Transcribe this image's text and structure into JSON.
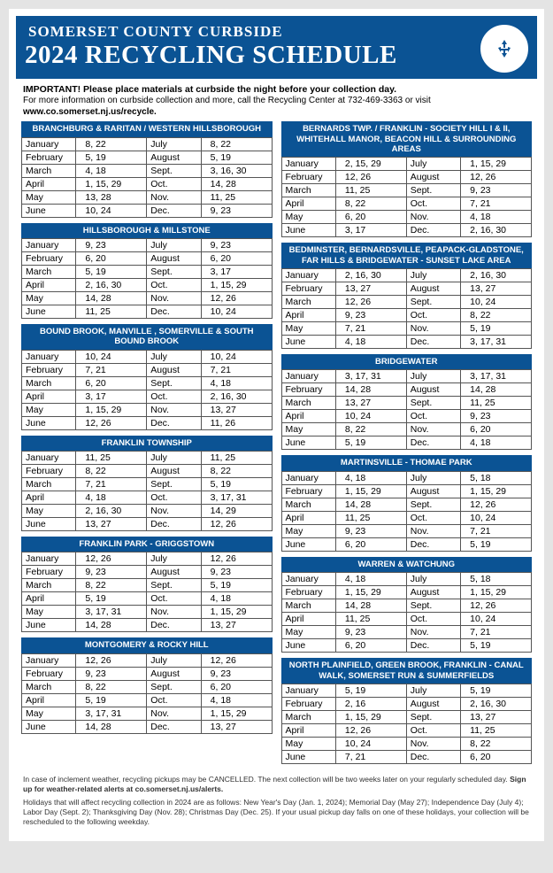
{
  "colors": {
    "brand": "#0b5394",
    "background": "#ffffff",
    "page_bg": "#e4e4e4",
    "border": "#555555",
    "text": "#000000"
  },
  "header": {
    "line1": "SOMERSET COUNTY CURBSIDE",
    "line2": "2024 RECYCLING SCHEDULE",
    "seal_text": "SOMERSET COUNTY NJ RECYCLING"
  },
  "intro": {
    "important": "IMPORTANT! Please place materials at curbside the night before your collection day.",
    "more_info": "For more information on curbside collection and more, call the Recycling Center at 732-469-3363 or visit",
    "website": "www.co.somerset.nj.us/recycle."
  },
  "months": [
    "January",
    "February",
    "March",
    "April",
    "May",
    "June",
    "July",
    "August",
    "Sept.",
    "Oct.",
    "Nov.",
    "Dec."
  ],
  "left_blocks": [
    {
      "title": "BRANCHBURG & RARITAN / WESTERN HILLSBOROUGH",
      "rows": [
        [
          "8, 22",
          "8, 22"
        ],
        [
          "5, 19",
          "5, 19"
        ],
        [
          "4, 18",
          "3, 16, 30"
        ],
        [
          "1, 15, 29",
          "14, 28"
        ],
        [
          "13, 28",
          "11, 25"
        ],
        [
          "10, 24",
          "9, 23"
        ]
      ]
    },
    {
      "title": "HILLSBOROUGH & MILLSTONE",
      "rows": [
        [
          "9, 23",
          "9, 23"
        ],
        [
          "6, 20",
          "6, 20"
        ],
        [
          "5, 19",
          "3, 17"
        ],
        [
          "2, 16, 30",
          "1, 15, 29"
        ],
        [
          "14, 28",
          "12, 26"
        ],
        [
          "11, 25",
          "10, 24"
        ]
      ]
    },
    {
      "title": "BOUND BROOK, MANVILLE , SOMERVILLE & SOUTH BOUND BROOK",
      "tall": true,
      "rows": [
        [
          "10, 24",
          "10, 24"
        ],
        [
          "7, 21",
          "7, 21"
        ],
        [
          "6, 20",
          "4, 18"
        ],
        [
          "3, 17",
          "2, 16, 30"
        ],
        [
          "1, 15, 29",
          "13, 27"
        ],
        [
          "12, 26",
          "11, 26"
        ]
      ]
    },
    {
      "title": "FRANKLIN TOWNSHIP",
      "rows": [
        [
          "11, 25",
          "11, 25"
        ],
        [
          "8, 22",
          "8, 22"
        ],
        [
          "7, 21",
          "5, 19"
        ],
        [
          "4, 18",
          "3, 17, 31"
        ],
        [
          "2, 16, 30",
          "14, 29"
        ],
        [
          "13, 27",
          "12, 26"
        ]
      ]
    },
    {
      "title": "FRANKLIN PARK - GRIGGSTOWN",
      "rows": [
        [
          "12, 26",
          "12, 26"
        ],
        [
          "9, 23",
          "9, 23"
        ],
        [
          "8, 22",
          "5, 19"
        ],
        [
          "5, 19",
          "4, 18"
        ],
        [
          "3, 17, 31",
          "1, 15, 29"
        ],
        [
          "14, 28",
          "13, 27"
        ]
      ]
    },
    {
      "title": "MONTGOMERY & ROCKY HILL",
      "rows": [
        [
          "12, 26",
          "12, 26"
        ],
        [
          "9, 23",
          "9, 23"
        ],
        [
          "8, 22",
          "6, 20"
        ],
        [
          "5, 19",
          "4, 18"
        ],
        [
          "3, 17, 31",
          "1, 15, 29"
        ],
        [
          "14, 28",
          "13, 27"
        ]
      ]
    }
  ],
  "right_blocks": [
    {
      "title": "BERNARDS TWP. / FRANKLIN - SOCIETY HILL I & II, WHITEHALL MANOR, BEACON HILL & SURROUNDING AREAS",
      "tall": true,
      "rows": [
        [
          "2, 15, 29",
          "1, 15, 29"
        ],
        [
          "12, 26",
          "12, 26"
        ],
        [
          "11, 25",
          "9, 23"
        ],
        [
          "8, 22",
          "7, 21"
        ],
        [
          "6, 20",
          "4, 18"
        ],
        [
          "3, 17",
          "2, 16, 30"
        ]
      ]
    },
    {
      "title": "BEDMINSTER, BERNARDSVILLE, PEAPACK-GLADSTONE, FAR HILLS & BRIDGEWATER - SUNSET LAKE AREA",
      "tall": true,
      "rows": [
        [
          "2, 16, 30",
          "2, 16, 30"
        ],
        [
          "13, 27",
          "13, 27"
        ],
        [
          "12, 26",
          "10, 24"
        ],
        [
          "9, 23",
          "8, 22"
        ],
        [
          "7, 21",
          "5, 19"
        ],
        [
          "4, 18",
          "3, 17, 31"
        ]
      ]
    },
    {
      "title": "BRIDGEWATER",
      "rows": [
        [
          "3, 17, 31",
          "3, 17, 31"
        ],
        [
          "14, 28",
          "14, 28"
        ],
        [
          "13, 27",
          "11, 25"
        ],
        [
          "10, 24",
          "9, 23"
        ],
        [
          "8, 22",
          "6, 20"
        ],
        [
          "5, 19",
          "4, 18"
        ]
      ]
    },
    {
      "title": "MARTINSVILLE - THOMAE PARK",
      "rows": [
        [
          "4, 18",
          "5, 18"
        ],
        [
          "1, 15, 29",
          "1, 15, 29"
        ],
        [
          "14, 28",
          "12, 26"
        ],
        [
          "11, 25",
          "10, 24"
        ],
        [
          "9, 23",
          "7, 21"
        ],
        [
          "6, 20",
          "5, 19"
        ]
      ]
    },
    {
      "title": "WARREN & WATCHUNG",
      "rows": [
        [
          "4, 18",
          "5, 18"
        ],
        [
          "1, 15, 29",
          "1, 15, 29"
        ],
        [
          "14, 28",
          "12, 26"
        ],
        [
          "11, 25",
          "10, 24"
        ],
        [
          "9, 23",
          "7, 21"
        ],
        [
          "6, 20",
          "5, 19"
        ]
      ]
    },
    {
      "title": "NORTH PLAINFIELD, GREEN BROOK, FRANKLIN - CANAL WALK, SOMERSET RUN & SUMMERFIELDS",
      "tall": true,
      "rows": [
        [
          "5, 19",
          "5, 19"
        ],
        [
          "2, 16",
          "2, 16, 30"
        ],
        [
          "1, 15, 29",
          "13, 27"
        ],
        [
          "12, 26",
          "11, 25"
        ],
        [
          "10, 24",
          "8, 22"
        ],
        [
          "7, 21",
          "6, 20"
        ]
      ]
    }
  ],
  "footer": {
    "weather": "In case of inclement weather, recycling pickups may be CANCELLED. The next collection will be two weeks later on your regularly scheduled day.",
    "signup": "Sign up for weather-related alerts at co.somerset.nj.us/alerts.",
    "holidays": "Holidays that will affect recycling collection in 2024 are as follows: New Year's Day (Jan. 1, 2024); Memorial Day (May 27); Independence Day (July 4); Labor Day (Sept. 2); Thanksgiving Day (Nov. 28); Christmas Day (Dec. 25). If your usual pickup day falls on one of these holidays, your collection will be rescheduled to the following weekday."
  }
}
